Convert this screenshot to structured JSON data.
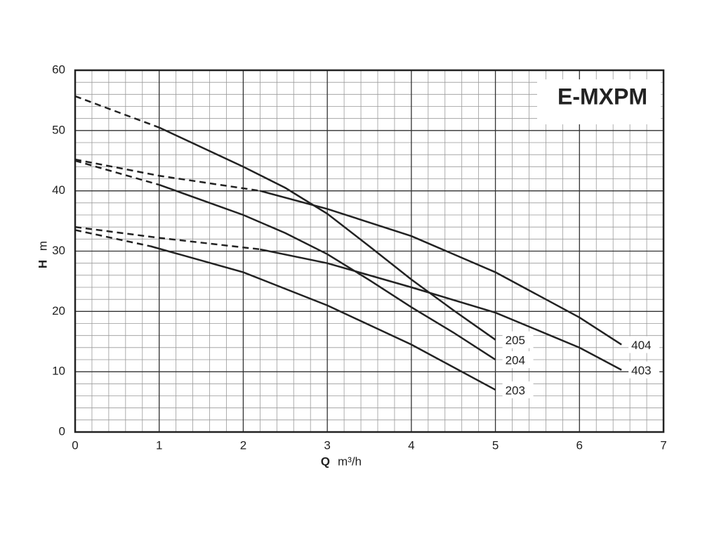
{
  "chart_data": {
    "type": "line",
    "title": "E-MXPM",
    "xlabel_symbol": "Q",
    "xlabel_unit": "m³/h",
    "ylabel_symbol": "H",
    "ylabel_unit": "m",
    "xlim": [
      0,
      7
    ],
    "xticks": [
      0,
      1,
      2,
      3,
      4,
      5,
      6,
      7
    ],
    "ylim": [
      0,
      60
    ],
    "yticks": [
      0,
      10,
      20,
      30,
      40,
      50,
      60
    ],
    "grid": true,
    "x_minor_step": 0.2,
    "y_minor_step": 2,
    "color": "#222222",
    "series": [
      {
        "name": "205",
        "x": [
          0,
          1,
          2,
          2.5,
          3,
          3.5,
          4,
          4.5,
          5
        ],
        "values": [
          55.7,
          50.5,
          44,
          40.5,
          36.2,
          30.8,
          25.3,
          20.2,
          15.3
        ],
        "dashed_segments": 1
      },
      {
        "name": "204",
        "x": [
          0,
          1,
          2,
          2.5,
          3,
          3.5,
          4,
          4.5,
          5
        ],
        "values": [
          45,
          41,
          36,
          33,
          29.5,
          25.2,
          20.7,
          16.5,
          12
        ],
        "dashed_segments": 1
      },
      {
        "name": "203",
        "x": [
          0,
          0.9,
          2,
          3,
          4,
          5
        ],
        "values": [
          33.5,
          30.8,
          26.5,
          21,
          14.5,
          7
        ],
        "dashed_segments": 1
      },
      {
        "name": "404",
        "x": [
          0,
          1,
          2.2,
          3,
          4,
          5,
          6,
          6.5
        ],
        "values": [
          45.2,
          42.5,
          40,
          37,
          32.5,
          26.5,
          19,
          14.5
        ],
        "dashed_segments": 2
      },
      {
        "name": "403",
        "x": [
          0,
          1,
          2.2,
          3,
          4,
          5,
          6,
          6.5
        ],
        "values": [
          34,
          32.2,
          30.3,
          28,
          24,
          19.8,
          14,
          10.3
        ],
        "dashed_segments": 2
      }
    ]
  }
}
